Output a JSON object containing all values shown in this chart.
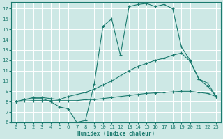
{
  "xlabel": "Humidex (Indice chaleur)",
  "xlim": [
    -0.5,
    23.5
  ],
  "ylim": [
    6,
    17.6
  ],
  "xticks": [
    0,
    1,
    2,
    3,
    4,
    5,
    6,
    7,
    8,
    9,
    10,
    11,
    12,
    13,
    14,
    15,
    16,
    17,
    18,
    19,
    20,
    21,
    22,
    23
  ],
  "yticks": [
    6,
    7,
    8,
    9,
    10,
    11,
    12,
    13,
    14,
    15,
    16,
    17
  ],
  "bg_color": "#cde8e5",
  "grid_color": "#ffffff",
  "line_color": "#1a7a6e",
  "line1_x": [
    0,
    1,
    2,
    3,
    4,
    5,
    6,
    7,
    8,
    9,
    10,
    11,
    12,
    13,
    14,
    15,
    16,
    17,
    18,
    19,
    20,
    21,
    22,
    23
  ],
  "line1_y": [
    8.0,
    8.2,
    8.3,
    8.3,
    8.0,
    7.5,
    7.3,
    6.0,
    6.2,
    9.7,
    15.3,
    16.0,
    12.5,
    17.2,
    17.4,
    17.5,
    17.2,
    17.4,
    17.0,
    13.3,
    12.0,
    10.2,
    9.8,
    8.5
  ],
  "line2_x": [
    0,
    1,
    2,
    3,
    4,
    5,
    6,
    7,
    8,
    9,
    10,
    11,
    12,
    13,
    14,
    15,
    16,
    17,
    18,
    19,
    20,
    21,
    22,
    23
  ],
  "line2_y": [
    8.0,
    8.2,
    8.4,
    8.4,
    8.3,
    8.2,
    8.5,
    8.7,
    8.9,
    9.2,
    9.6,
    10.0,
    10.5,
    11.0,
    11.4,
    11.7,
    12.0,
    12.2,
    12.5,
    12.7,
    11.9,
    10.2,
    9.5,
    8.5
  ],
  "line3_x": [
    0,
    1,
    2,
    3,
    4,
    5,
    6,
    7,
    8,
    9,
    10,
    11,
    12,
    13,
    14,
    15,
    16,
    17,
    18,
    19,
    20,
    21,
    22,
    23
  ],
  "line3_y": [
    8.0,
    8.05,
    8.1,
    8.1,
    8.1,
    8.1,
    8.1,
    8.1,
    8.2,
    8.2,
    8.3,
    8.4,
    8.5,
    8.6,
    8.7,
    8.8,
    8.85,
    8.9,
    8.95,
    9.0,
    9.0,
    8.9,
    8.8,
    8.5
  ]
}
